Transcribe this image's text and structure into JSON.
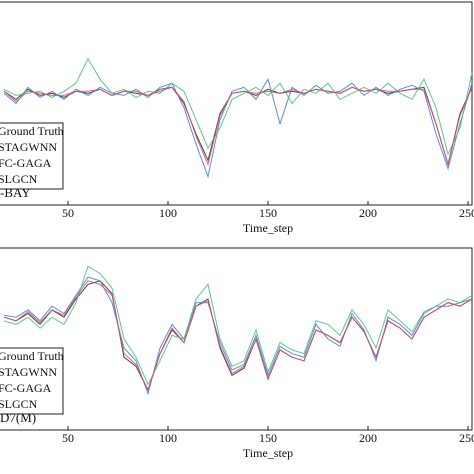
{
  "chart_data": [
    {
      "type": "line",
      "title": "-BAY",
      "xlabel": "Time_step",
      "x": [
        18,
        24,
        30,
        36,
        42,
        48,
        54,
        60,
        66,
        72,
        78,
        84,
        90,
        96,
        102,
        108,
        114,
        120,
        126,
        132,
        138,
        144,
        150,
        156,
        162,
        168,
        174,
        180,
        186,
        192,
        198,
        204,
        210,
        216,
        222,
        228,
        234,
        240,
        246,
        252
      ],
      "xlim": [
        16,
        252
      ],
      "xticks": [
        50,
        100,
        150,
        200,
        250
      ],
      "ylim": [
        0,
        100
      ],
      "series": [
        {
          "name": "Ground Truth",
          "color": "#333333",
          "values": [
            56,
            52,
            57,
            54,
            55,
            53,
            56,
            55,
            57,
            54,
            56,
            55,
            54,
            57,
            58,
            50,
            35,
            22,
            45,
            55,
            56,
            54,
            57,
            55,
            56,
            55,
            57,
            56,
            55,
            58,
            56,
            57,
            55,
            56,
            57,
            58,
            40,
            20,
            45,
            58
          ]
        },
        {
          "name": "STAGWNN",
          "color": "#4a7fd6",
          "values": [
            55,
            50,
            58,
            53,
            56,
            52,
            57,
            54,
            58,
            55,
            54,
            57,
            53,
            58,
            60,
            48,
            30,
            14,
            42,
            56,
            58,
            52,
            62,
            40,
            58,
            54,
            59,
            55,
            56,
            60,
            54,
            58,
            54,
            57,
            59,
            56,
            35,
            18,
            40,
            60
          ]
        },
        {
          "name": "FC-GAGA",
          "color": "#4fbf7f",
          "values": [
            57,
            54,
            55,
            56,
            53,
            56,
            60,
            72,
            62,
            55,
            57,
            53,
            56,
            55,
            60,
            56,
            42,
            28,
            38,
            52,
            55,
            58,
            54,
            60,
            50,
            57,
            55,
            60,
            52,
            55,
            58,
            55,
            60,
            55,
            52,
            62,
            48,
            25,
            38,
            65
          ]
        },
        {
          "name": "SLGCN",
          "color": "#e0506a",
          "values": [
            56,
            51,
            56,
            55,
            54,
            54,
            56,
            56,
            57,
            54,
            56,
            56,
            54,
            56,
            58,
            51,
            34,
            20,
            44,
            55,
            56,
            55,
            56,
            55,
            57,
            55,
            57,
            56,
            55,
            58,
            56,
            57,
            56,
            56,
            57,
            57,
            40,
            20,
            44,
            58
          ]
        }
      ]
    },
    {
      "type": "line",
      "title": "D7(M)",
      "xlabel": "Time_step",
      "x": [
        18,
        24,
        30,
        36,
        42,
        48,
        54,
        60,
        66,
        72,
        78,
        84,
        90,
        96,
        102,
        108,
        114,
        120,
        126,
        132,
        138,
        144,
        150,
        156,
        162,
        168,
        174,
        180,
        186,
        192,
        198,
        204,
        210,
        216,
        222,
        228,
        234,
        240,
        246,
        252
      ],
      "xlim": [
        16,
        252
      ],
      "xticks": [
        50,
        100,
        150,
        200,
        250
      ],
      "ylim": [
        0,
        100
      ],
      "series": [
        {
          "name": "Ground Truth",
          "color": "#333333",
          "values": [
            62,
            60,
            64,
            58,
            66,
            62,
            72,
            80,
            82,
            75,
            40,
            35,
            22,
            42,
            55,
            48,
            68,
            72,
            45,
            30,
            34,
            50,
            28,
            44,
            40,
            38,
            55,
            52,
            48,
            62,
            54,
            40,
            60,
            56,
            50,
            62,
            66,
            70,
            68,
            72
          ]
        },
        {
          "name": "STAGWNN",
          "color": "#4a7fd6",
          "values": [
            63,
            62,
            66,
            60,
            68,
            64,
            74,
            84,
            82,
            70,
            45,
            38,
            20,
            45,
            58,
            50,
            70,
            70,
            48,
            33,
            36,
            52,
            30,
            46,
            42,
            40,
            58,
            50,
            46,
            64,
            55,
            38,
            62,
            58,
            52,
            64,
            68,
            68,
            70,
            72
          ]
        },
        {
          "name": "FC-GAGA",
          "color": "#4fbf7f",
          "values": [
            60,
            58,
            62,
            56,
            62,
            58,
            70,
            90,
            86,
            78,
            50,
            40,
            25,
            38,
            52,
            50,
            72,
            80,
            50,
            35,
            38,
            55,
            32,
            48,
            44,
            42,
            60,
            58,
            52,
            66,
            58,
            45,
            66,
            60,
            54,
            65,
            68,
            72,
            70,
            74
          ]
        },
        {
          "name": "SLGCN",
          "color": "#e0506a",
          "values": [
            62,
            60,
            65,
            59,
            66,
            63,
            73,
            82,
            80,
            74,
            42,
            36,
            22,
            42,
            56,
            48,
            68,
            71,
            46,
            31,
            35,
            50,
            28,
            44,
            40,
            38,
            55,
            52,
            48,
            62,
            54,
            40,
            60,
            56,
            50,
            62,
            66,
            70,
            68,
            72
          ]
        }
      ]
    }
  ]
}
